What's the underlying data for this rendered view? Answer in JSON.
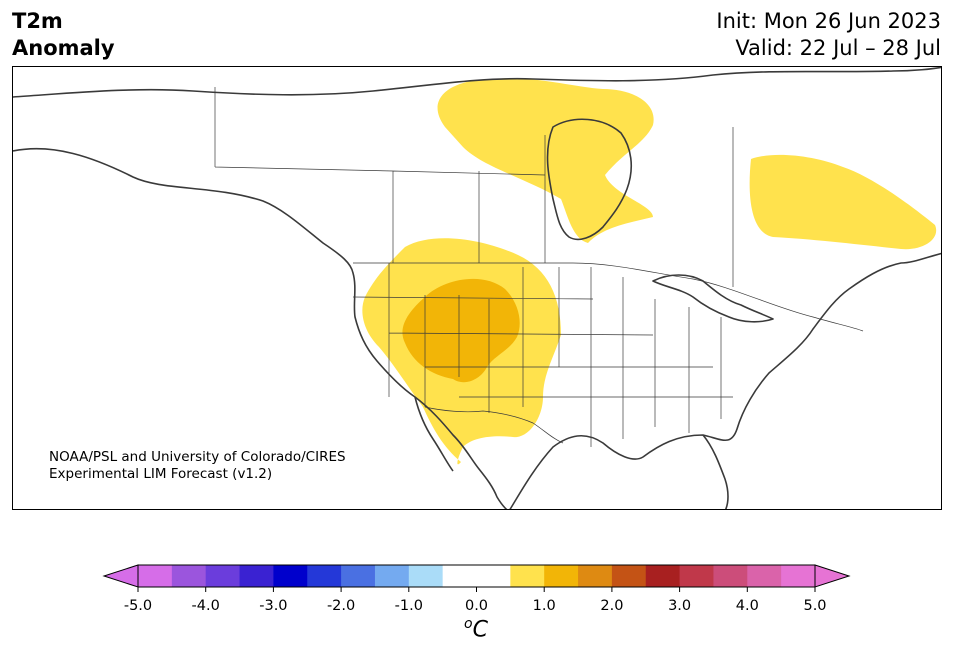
{
  "header": {
    "variable": "T2m",
    "field": "Anomaly",
    "init": "Init: Mon 26 Jun 2023",
    "valid": "Valid: 22 Jul – 28 Jul"
  },
  "credit": {
    "line1": "NOAA/PSL and University of Colorado/CIRES",
    "line2": "Experimental LIM Forecast (v1.2)"
  },
  "colorbar": {
    "unit_main": "C",
    "unit_sup": "o",
    "tick_labels": [
      "-5.0",
      "-4.0",
      "-3.0",
      "-2.0",
      "-1.0",
      "0.0",
      "1.0",
      "2.0",
      "3.0",
      "4.0",
      "5.0"
    ],
    "colors": [
      "#d66de8",
      "#9b55dd",
      "#6b3ddc",
      "#3a22d2",
      "#0000cc",
      "#2438d8",
      "#4a70e2",
      "#74aaf0",
      "#aadcf8",
      "#ffffff",
      "#ffffff",
      "#ffe24d",
      "#f2b507",
      "#de8a12",
      "#c45315",
      "#a82020",
      "#c0384a",
      "#cc4d7a",
      "#da63aa",
      "#e673d4"
    ],
    "under_color": "#d66de8",
    "over_color": "#e673d4"
  },
  "map": {
    "anomaly_colors": {
      "weak_warm": "#ffe24d",
      "moderate_warm": "#f2b507"
    },
    "coast_color": "#3a3a3a",
    "border_color": "#3a3a3a"
  }
}
